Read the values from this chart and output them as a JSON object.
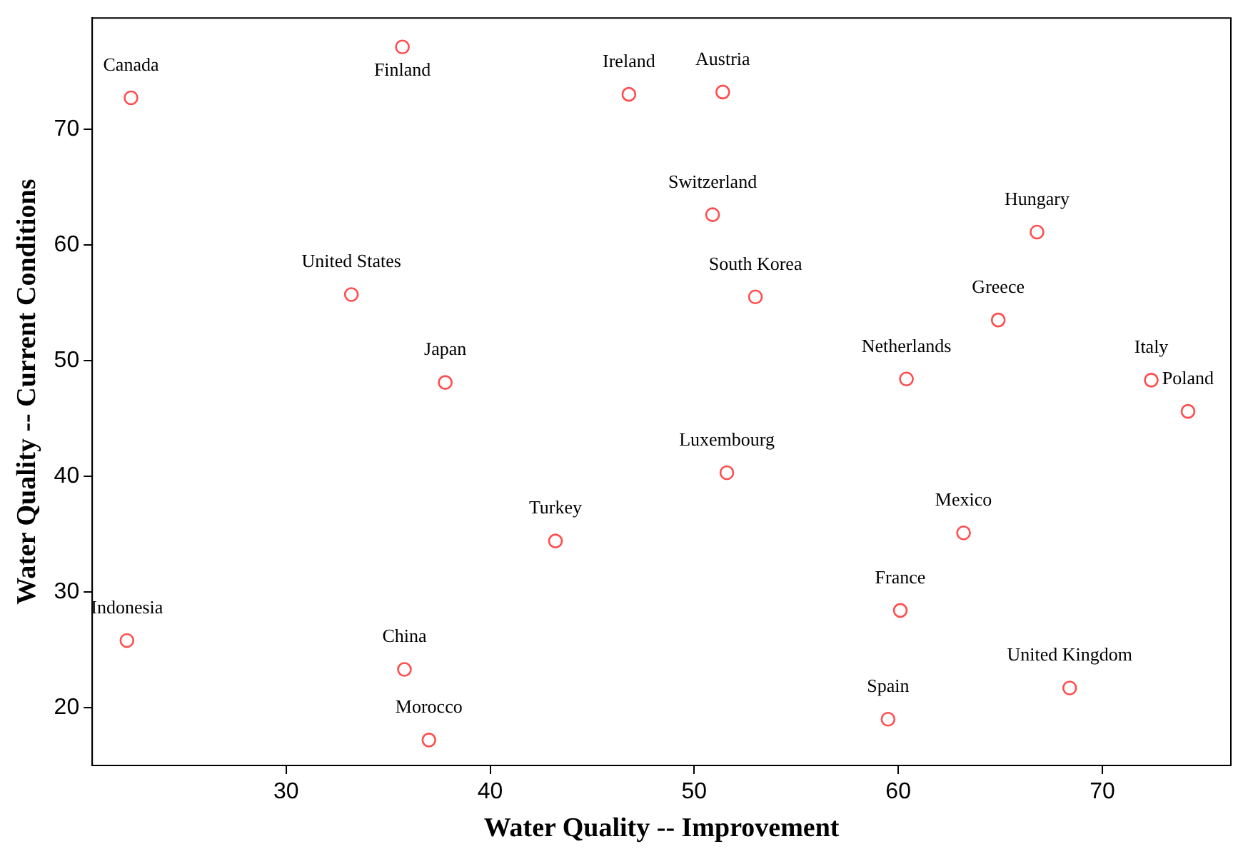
{
  "chart_data": {
    "type": "scatter",
    "xlabel": "Water Quality -- Improvement",
    "ylabel": "Water Quality -- Current Conditions",
    "x": [
      22.4,
      35.7,
      46.8,
      51.4,
      50.9,
      66.8,
      33.2,
      53.0,
      64.9,
      37.8,
      60.4,
      72.4,
      74.2,
      51.6,
      63.2,
      43.2,
      60.1,
      22.2,
      35.8,
      68.4,
      59.5,
      37.0
    ],
    "values": [
      72.7,
      77.1,
      73.0,
      73.2,
      62.6,
      61.1,
      55.7,
      55.5,
      53.5,
      48.1,
      48.4,
      48.3,
      45.6,
      40.3,
      35.1,
      34.4,
      28.4,
      25.8,
      23.3,
      21.7,
      19.0,
      17.2
    ],
    "color": "#ff4d4d",
    "marker": "circle",
    "grid": false,
    "legend": false,
    "xlim": [
      20.5,
      76.3
    ],
    "ylim": [
      15,
      79.6
    ],
    "xticks": [
      30,
      40,
      50,
      60,
      70
    ],
    "yticks": [
      20,
      30,
      40,
      50,
      60,
      70
    ],
    "annotations": [
      {
        "text": "Canada",
        "x": 22.4,
        "y": 72.7
      },
      {
        "text": "Finland",
        "x": 35.7,
        "y": 77.1
      },
      {
        "text": "Ireland",
        "x": 46.8,
        "y": 73.0
      },
      {
        "text": "Austria",
        "x": 51.4,
        "y": 73.2
      },
      {
        "text": "Switzerland",
        "x": 50.9,
        "y": 62.6
      },
      {
        "text": "Hungary",
        "x": 66.8,
        "y": 61.1
      },
      {
        "text": "United States",
        "x": 33.2,
        "y": 55.7
      },
      {
        "text": "South Korea",
        "x": 53.0,
        "y": 55.5
      },
      {
        "text": "Greece",
        "x": 64.9,
        "y": 53.5
      },
      {
        "text": "Japan",
        "x": 37.8,
        "y": 48.1
      },
      {
        "text": "Netherlands",
        "x": 60.4,
        "y": 48.4
      },
      {
        "text": "Italy",
        "x": 72.4,
        "y": 48.3
      },
      {
        "text": "Poland",
        "x": 74.2,
        "y": 45.6
      },
      {
        "text": "Luxembourg",
        "x": 51.6,
        "y": 40.3
      },
      {
        "text": "Mexico",
        "x": 63.2,
        "y": 35.1
      },
      {
        "text": "Turkey",
        "x": 43.2,
        "y": 34.4
      },
      {
        "text": "France",
        "x": 60.1,
        "y": 28.4
      },
      {
        "text": "Indonesia",
        "x": 22.2,
        "y": 25.8
      },
      {
        "text": "China",
        "x": 35.8,
        "y": 23.3
      },
      {
        "text": "United Kingdom",
        "x": 68.4,
        "y": 21.7
      },
      {
        "text": "Spain",
        "x": 59.5,
        "y": 19.0
      },
      {
        "text": "Morocco",
        "x": 37.0,
        "y": 17.2
      }
    ]
  }
}
